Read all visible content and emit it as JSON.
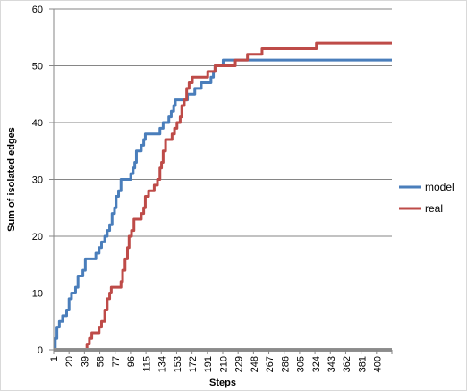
{
  "chart_data": {
    "type": "line",
    "title": "",
    "xlabel": "Steps",
    "ylabel": "Sum of isolated edges",
    "x_ticks": [
      "1",
      "20",
      "39",
      "58",
      "77",
      "96",
      "115",
      "134",
      "153",
      "172",
      "191",
      "210",
      "229",
      "248",
      "267",
      "286",
      "305",
      "324",
      "343",
      "362",
      "381",
      "400"
    ],
    "x_range": [
      1,
      418
    ],
    "ylim": [
      0,
      60
    ],
    "y_ticks": [
      0,
      10,
      20,
      30,
      40,
      50,
      60
    ],
    "grid": "horizontal",
    "legend_position": "right",
    "series": [
      {
        "name": "model",
        "color": "#4a7ebb",
        "points": [
          [
            1,
            0
          ],
          [
            3,
            2
          ],
          [
            5,
            4
          ],
          [
            8,
            5
          ],
          [
            12,
            6
          ],
          [
            17,
            7
          ],
          [
            20,
            9
          ],
          [
            23,
            10
          ],
          [
            28,
            11
          ],
          [
            31,
            13
          ],
          [
            37,
            14
          ],
          [
            40,
            16
          ],
          [
            53,
            17
          ],
          [
            57,
            18
          ],
          [
            60,
            19
          ],
          [
            64,
            20
          ],
          [
            67,
            21
          ],
          [
            70,
            22
          ],
          [
            73,
            24
          ],
          [
            76,
            25
          ],
          [
            78,
            27
          ],
          [
            81,
            28
          ],
          [
            84,
            30
          ],
          [
            96,
            31
          ],
          [
            99,
            32
          ],
          [
            101,
            33
          ],
          [
            103,
            35
          ],
          [
            109,
            36
          ],
          [
            112,
            37
          ],
          [
            114,
            38
          ],
          [
            132,
            39
          ],
          [
            136,
            40
          ],
          [
            143,
            41
          ],
          [
            146,
            42
          ],
          [
            149,
            43
          ],
          [
            151,
            44
          ],
          [
            166,
            45
          ],
          [
            175,
            46
          ],
          [
            183,
            47
          ],
          [
            195,
            48
          ],
          [
            198,
            49
          ],
          [
            200,
            50
          ],
          [
            208,
            50
          ],
          [
            210,
            51
          ],
          [
            418,
            51
          ]
        ]
      },
      {
        "name": "real",
        "color": "#be4b48",
        "points": [
          [
            1,
            0
          ],
          [
            39,
            0
          ],
          [
            42,
            1
          ],
          [
            45,
            2
          ],
          [
            48,
            3
          ],
          [
            57,
            4
          ],
          [
            60,
            5
          ],
          [
            64,
            7
          ],
          [
            67,
            9
          ],
          [
            70,
            10
          ],
          [
            72,
            11
          ],
          [
            84,
            12
          ],
          [
            86,
            14
          ],
          [
            89,
            16
          ],
          [
            92,
            18
          ],
          [
            94,
            20
          ],
          [
            97,
            21
          ],
          [
            100,
            23
          ],
          [
            109,
            24
          ],
          [
            112,
            25
          ],
          [
            114,
            27
          ],
          [
            118,
            28
          ],
          [
            125,
            29
          ],
          [
            129,
            30
          ],
          [
            132,
            32
          ],
          [
            134,
            33
          ],
          [
            136,
            35
          ],
          [
            139,
            37
          ],
          [
            147,
            38
          ],
          [
            150,
            39
          ],
          [
            153,
            40
          ],
          [
            157,
            41
          ],
          [
            159,
            43
          ],
          [
            162,
            44
          ],
          [
            165,
            46
          ],
          [
            168,
            47
          ],
          [
            172,
            48
          ],
          [
            191,
            49
          ],
          [
            200,
            50
          ],
          [
            225,
            51
          ],
          [
            240,
            52
          ],
          [
            258,
            53
          ],
          [
            318,
            53
          ],
          [
            325,
            54
          ],
          [
            418,
            54
          ]
        ]
      },
      {
        "name": "",
        "color": "#909090",
        "points": [
          [
            1,
            0
          ],
          [
            418,
            0
          ]
        ]
      }
    ]
  }
}
